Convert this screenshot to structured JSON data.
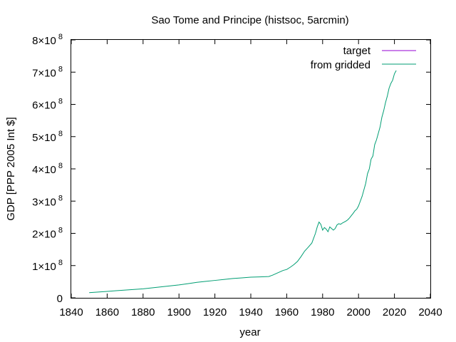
{
  "chart_data": {
    "type": "line",
    "title": "Sao Tome and Principe (histsoc, 5arcmin)",
    "xlabel": "year",
    "ylabel": "GDP [PPP 2005 Int $]",
    "xlim": [
      1840,
      2040
    ],
    "ylim": [
      0,
      800000000
    ],
    "x_ticks": [
      1840,
      1860,
      1880,
      1900,
      1920,
      1940,
      1960,
      1980,
      2000,
      2020,
      2040
    ],
    "x_tick_labels": [
      "1840",
      "1860",
      "1880",
      "1900",
      "1920",
      "1940",
      "1960",
      "1980",
      "2000",
      "2020",
      "2040"
    ],
    "y_ticks": [
      {
        "value": 0,
        "mantissa": "0",
        "exp": ""
      },
      {
        "value": 100000000,
        "mantissa": "1×10",
        "exp": "8"
      },
      {
        "value": 200000000,
        "mantissa": "2×10",
        "exp": "8"
      },
      {
        "value": 300000000,
        "mantissa": "3×10",
        "exp": "8"
      },
      {
        "value": 400000000,
        "mantissa": "4×10",
        "exp": "8"
      },
      {
        "value": 500000000,
        "mantissa": "5×10",
        "exp": "8"
      },
      {
        "value": 600000000,
        "mantissa": "6×10",
        "exp": "8"
      },
      {
        "value": 700000000,
        "mantissa": "7×10",
        "exp": "8"
      },
      {
        "value": 800000000,
        "mantissa": "8×10",
        "exp": "8"
      }
    ],
    "grid": false,
    "legend_position": "top-right",
    "series": [
      {
        "name": "target",
        "color": "#9400d3",
        "x": [],
        "y": []
      },
      {
        "name": "from gridded",
        "color": "#009e73",
        "x": [
          1850,
          1855,
          1860,
          1865,
          1870,
          1875,
          1880,
          1885,
          1890,
          1895,
          1900,
          1905,
          1910,
          1915,
          1920,
          1925,
          1930,
          1935,
          1940,
          1945,
          1950,
          1952,
          1954,
          1956,
          1958,
          1960,
          1962,
          1964,
          1966,
          1968,
          1970,
          1972,
          1974,
          1976,
          1977,
          1978,
          1979,
          1980,
          1981,
          1982,
          1983,
          1984,
          1985,
          1986,
          1987,
          1988,
          1989,
          1990,
          1991,
          1992,
          1993,
          1994,
          1995,
          1996,
          1997,
          1998,
          1999,
          2000,
          2001,
          2002,
          2003,
          2004,
          2005,
          2006,
          2007,
          2008,
          2009,
          2010,
          2011,
          2012,
          2013,
          2014,
          2015,
          2016,
          2017,
          2018,
          2019,
          2020,
          2021
        ],
        "y": [
          16000000,
          18000000,
          20000000,
          22000000,
          24000000,
          26000000,
          28000000,
          31000000,
          34000000,
          37000000,
          40000000,
          44000000,
          48000000,
          51000000,
          54000000,
          57000000,
          60000000,
          62000000,
          64000000,
          65000000,
          66000000,
          70000000,
          75000000,
          80000000,
          85000000,
          88000000,
          95000000,
          103000000,
          113000000,
          128000000,
          145000000,
          157000000,
          170000000,
          200000000,
          220000000,
          235000000,
          228000000,
          210000000,
          218000000,
          213000000,
          205000000,
          220000000,
          215000000,
          210000000,
          215000000,
          226000000,
          230000000,
          228000000,
          232000000,
          235000000,
          238000000,
          242000000,
          248000000,
          255000000,
          262000000,
          270000000,
          275000000,
          285000000,
          300000000,
          315000000,
          335000000,
          355000000,
          385000000,
          400000000,
          430000000,
          440000000,
          475000000,
          490000000,
          510000000,
          530000000,
          560000000,
          580000000,
          605000000,
          625000000,
          650000000,
          665000000,
          675000000,
          695000000,
          705000000
        ]
      }
    ]
  }
}
